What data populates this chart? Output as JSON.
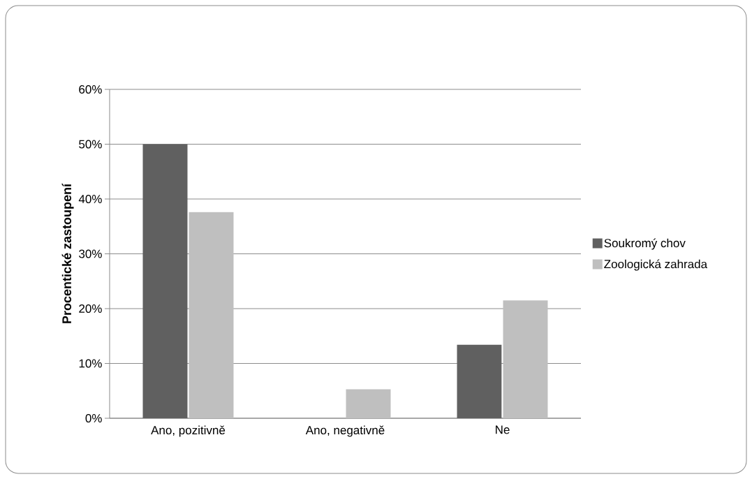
{
  "chart_data": {
    "type": "bar",
    "ylabel": "Procentické zastoupení",
    "categories": [
      "Ano, pozitivně",
      "Ano, negativně",
      "Ne"
    ],
    "series": [
      {
        "name": "Soukromý chov",
        "color": "#606060",
        "values": [
          50,
          0,
          13.4
        ]
      },
      {
        "name": "Zoologická zahrada",
        "color": "#bfbfbf",
        "values": [
          37.6,
          5.3,
          21.5
        ]
      }
    ],
    "ylim": [
      0,
      60
    ],
    "yticks": [
      {
        "value": 0,
        "label": "0%"
      },
      {
        "value": 10,
        "label": "10%"
      },
      {
        "value": 20,
        "label": "20%"
      },
      {
        "value": 30,
        "label": "30%"
      },
      {
        "value": 40,
        "label": "40%"
      },
      {
        "value": 50,
        "label": "50%"
      },
      {
        "value": 60,
        "label": "60%"
      }
    ],
    "grid": "y",
    "legend": "right"
  }
}
